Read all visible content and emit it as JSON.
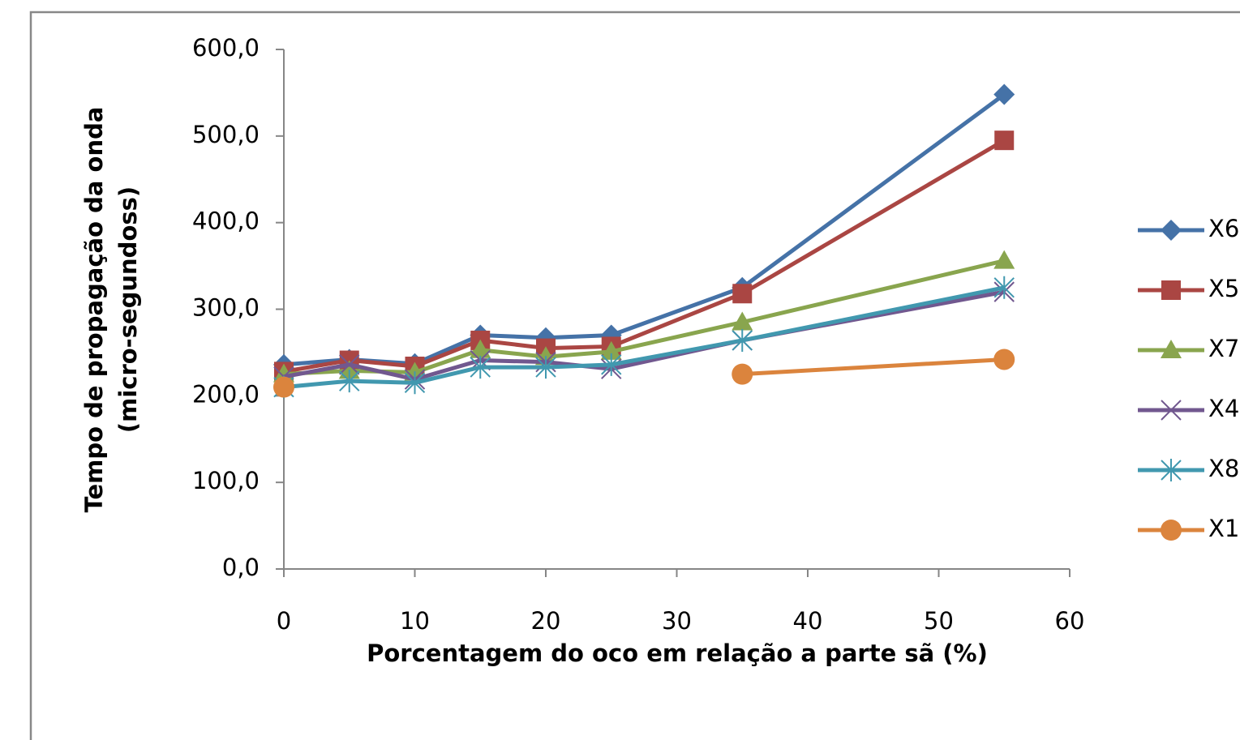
{
  "chart_data": {
    "type": "line",
    "xlabel": "Porcentagem do oco em relação a parte sã (%)",
    "ylabel": [
      "Tempo de propagação da onda",
      "(micro-segundoss)"
    ],
    "x": [
      0,
      5,
      10,
      15,
      20,
      25,
      35,
      55
    ],
    "xlim": [
      0,
      60
    ],
    "xticks": [
      0,
      10,
      20,
      30,
      40,
      50,
      60
    ],
    "ylim": [
      0,
      600
    ],
    "yticks": [
      {
        "value": 0,
        "label": "0,0"
      },
      {
        "value": 100,
        "label": "100,0"
      },
      {
        "value": 200,
        "label": "200,0"
      },
      {
        "value": 300,
        "label": "300,0"
      },
      {
        "value": 400,
        "label": "400,0"
      },
      {
        "value": 500,
        "label": "500,0"
      },
      {
        "value": 600,
        "label": "600,0"
      }
    ],
    "grid": false,
    "legend": "right",
    "series": [
      {
        "name": "X6",
        "color": "#4572a7",
        "marker": "diamond",
        "values": [
          236,
          242,
          237,
          270,
          267,
          270,
          325,
          548
        ]
      },
      {
        "name": "X5",
        "color": "#aa4643",
        "marker": "square",
        "values": [
          228,
          241,
          234,
          264,
          255,
          257,
          318,
          495
        ]
      },
      {
        "name": "X7",
        "color": "#89a54e",
        "marker": "triangle",
        "values": [
          225,
          229,
          227,
          253,
          245,
          251,
          285,
          356
        ]
      },
      {
        "name": "X4",
        "color": "#71588f",
        "marker": "x",
        "values": [
          222,
          236,
          219,
          241,
          239,
          231,
          264,
          320
        ]
      },
      {
        "name": "X8",
        "color": "#4198af",
        "marker": "star",
        "values": [
          210,
          217,
          215,
          233,
          233,
          236,
          264,
          325
        ]
      },
      {
        "name": "X1",
        "color": "#db843d",
        "marker": "circle",
        "values": [
          210,
          null,
          null,
          null,
          null,
          null,
          225,
          242
        ]
      }
    ]
  }
}
